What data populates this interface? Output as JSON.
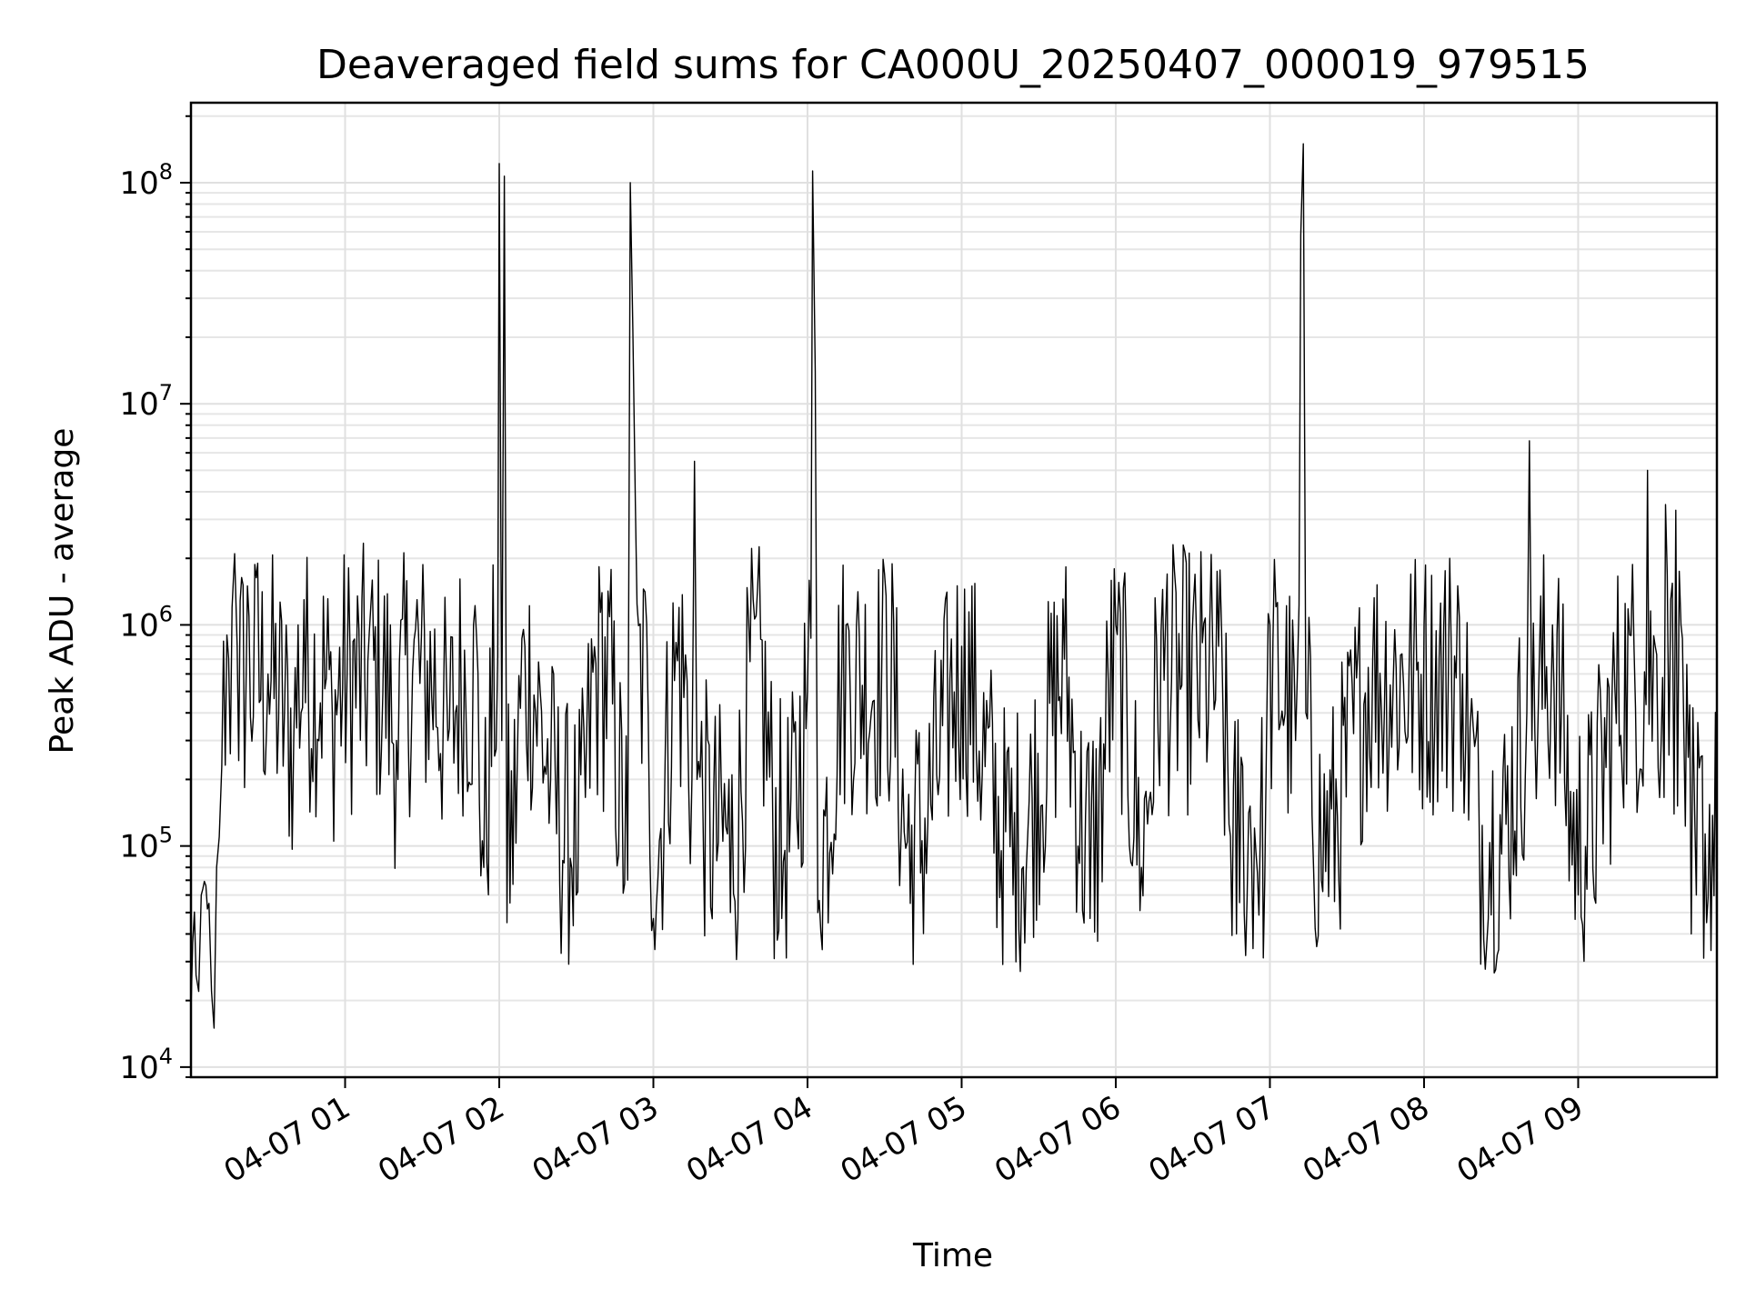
{
  "chart_data": {
    "type": "line",
    "title": "Deaveraged field sums for CA000U_20250407_000019_979515",
    "xlabel": "Time",
    "ylabel": "Peak ADU - average",
    "yscale": "log",
    "ylim": [
      9000,
      230000000
    ],
    "xlim": [
      "2025-04-07 00:00",
      "2025-04-07 09:54"
    ],
    "grid": true,
    "x_ticks": [
      "04-07 01",
      "04-07 02",
      "04-07 03",
      "04-07 04",
      "04-07 05",
      "04-07 06",
      "04-07 07",
      "04-07 08",
      "04-07 09"
    ],
    "y_ticks": [
      {
        "value": 10000,
        "base": "10",
        "exp": "4"
      },
      {
        "value": 100000,
        "base": "10",
        "exp": "5"
      },
      {
        "value": 1000000,
        "base": "10",
        "exp": "6"
      },
      {
        "value": 10000000,
        "base": "10",
        "exp": "7"
      },
      {
        "value": 100000000,
        "base": "10",
        "exp": "8"
      }
    ],
    "series": [
      {
        "color": "#000000",
        "points": [
          [
            "00:00",
            18000
          ],
          [
            "00:02",
            26000
          ],
          [
            "00:03",
            22000
          ],
          [
            "00:04",
            60000
          ],
          [
            "00:07",
            55000
          ],
          [
            "00:08",
            22000
          ],
          [
            "00:09",
            15000
          ],
          [
            "00:10",
            80000
          ],
          [
            "00:11",
            110000
          ],
          [
            "00:12",
            230000
          ],
          [
            "00:14",
            900000
          ],
          [
            "00:16",
            1200000
          ],
          [
            "00:17",
            2100000
          ],
          [
            "00:18",
            800000
          ],
          [
            "00:22",
            1500000
          ],
          [
            "00:26",
            1900000
          ],
          [
            "00:30",
            600000
          ],
          [
            "00:40",
            300000
          ],
          [
            "00:44",
            1300000
          ],
          [
            "00:55",
            400000
          ],
          [
            "01:10",
            1200000
          ],
          [
            "01:20",
            300000
          ],
          [
            "01:28",
            1300000
          ],
          [
            "01:40",
            300000
          ],
          [
            "01:50",
            1000000
          ],
          [
            "01:54",
            80000
          ],
          [
            "02:00",
            122000000
          ],
          [
            "02:01",
            300000
          ],
          [
            "02:02",
            107000000
          ],
          [
            "02:03",
            45000
          ],
          [
            "02:10",
            800000
          ],
          [
            "02:20",
            200000
          ],
          [
            "02:30",
            60000
          ],
          [
            "02:40",
            1400000
          ],
          [
            "02:50",
            70000
          ],
          [
            "02:51",
            100000000
          ],
          [
            "02:52",
            22000000
          ],
          [
            "02:53",
            3500000
          ],
          [
            "02:58",
            400000
          ],
          [
            "03:00",
            47000
          ],
          [
            "03:10",
            1200000
          ],
          [
            "03:15",
            200000
          ],
          [
            "03:16",
            5500000
          ],
          [
            "03:17",
            200000
          ],
          [
            "03:30",
            50000
          ],
          [
            "03:40",
            1100000
          ],
          [
            "03:50",
            47000
          ],
          [
            "04:00",
            500000
          ],
          [
            "04:02",
            113000000
          ],
          [
            "04:03",
            14000000
          ],
          [
            "04:04",
            50000
          ],
          [
            "04:15",
            1000000
          ],
          [
            "04:30",
            1700000
          ],
          [
            "04:40",
            55000
          ],
          [
            "05:00",
            800000
          ],
          [
            "05:20",
            60000
          ],
          [
            "05:40",
            700000
          ],
          [
            "05:50",
            47000
          ],
          [
            "06:00",
            1000000
          ],
          [
            "06:10",
            80000
          ],
          [
            "06:20",
            1700000
          ],
          [
            "06:40",
            800000
          ],
          [
            "06:47",
            40000
          ],
          [
            "06:50",
            50000
          ],
          [
            "06:58",
            70000
          ],
          [
            "07:00",
            1000000
          ],
          [
            "07:10",
            300000
          ],
          [
            "07:12",
            58000000
          ],
          [
            "07:13",
            150000000
          ],
          [
            "07:14",
            400000
          ],
          [
            "07:20",
            70000
          ],
          [
            "07:40",
            700000
          ],
          [
            "08:00",
            1000000
          ],
          [
            "08:10",
            2000000
          ],
          [
            "08:15",
            600000
          ],
          [
            "08:25",
            47000
          ],
          [
            "08:40",
            400000
          ],
          [
            "08:41",
            6800000
          ],
          [
            "08:42",
            300000
          ],
          [
            "08:50",
            1000000
          ],
          [
            "09:00",
            60000
          ],
          [
            "09:20",
            900000
          ],
          [
            "09:27",
            5000000
          ],
          [
            "09:30",
            800000
          ],
          [
            "09:34",
            3500000
          ],
          [
            "09:36",
            1300000
          ],
          [
            "09:38",
            3300000
          ],
          [
            "09:40",
            1000000
          ],
          [
            "09:44",
            40000
          ],
          [
            "09:46",
            60000
          ],
          [
            "09:50",
            45000
          ],
          [
            "09:54",
            25000
          ]
        ]
      }
    ]
  }
}
